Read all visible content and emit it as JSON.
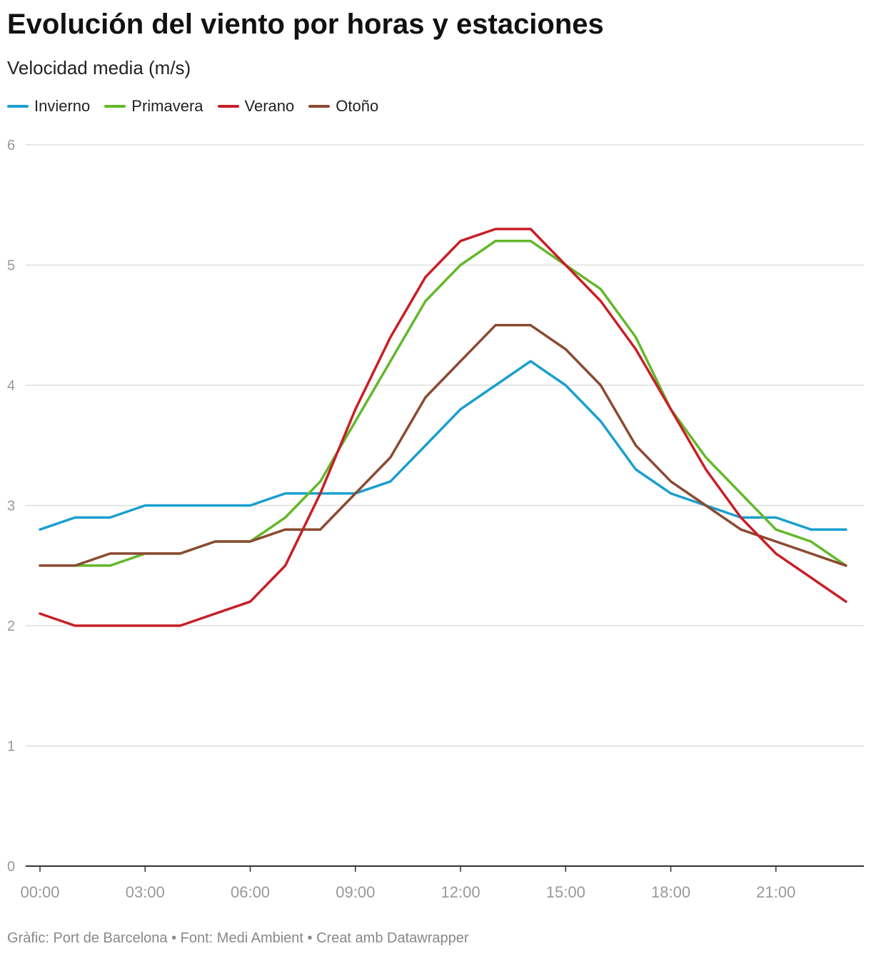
{
  "header": {
    "title": "Evolución del viento por horas y estaciones",
    "subtitle": "Velocidad media (m/s)"
  },
  "footer": {
    "text": "Gràfic: Port de Barcelona • Font: Medi Ambient • Creat amb Datawrapper"
  },
  "chart_data": {
    "type": "line",
    "title": "Evolución del viento por horas y estaciones",
    "subtitle": "Velocidad media (m/s)",
    "xlabel": "",
    "ylabel": "",
    "x": [
      0,
      1,
      2,
      3,
      4,
      5,
      6,
      7,
      8,
      9,
      10,
      11,
      12,
      13,
      14,
      15,
      16,
      17,
      18,
      19,
      20,
      21,
      22,
      23
    ],
    "x_range": [
      0,
      23
    ],
    "x_ticks": [
      0,
      3,
      6,
      9,
      12,
      15,
      18,
      21
    ],
    "x_tick_labels": [
      "00:00",
      "03:00",
      "06:00",
      "09:00",
      "12:00",
      "15:00",
      "18:00",
      "21:00"
    ],
    "ylim": [
      0,
      6
    ],
    "y_ticks": [
      0,
      1,
      2,
      3,
      4,
      5,
      6
    ],
    "grid": true,
    "legend": "top-left",
    "series": [
      {
        "name": "Invierno",
        "color": "#1a9fd0",
        "values": [
          2.8,
          2.9,
          2.9,
          3.0,
          3.0,
          3.0,
          3.0,
          3.1,
          3.1,
          3.1,
          3.2,
          3.5,
          3.8,
          4.0,
          4.2,
          4.0,
          3.7,
          3.3,
          3.1,
          3.0,
          2.9,
          2.9,
          2.8,
          2.8
        ]
      },
      {
        "name": "Primavera",
        "color": "#63b82a",
        "values": [
          2.5,
          2.5,
          2.5,
          2.6,
          2.6,
          2.7,
          2.7,
          2.9,
          3.2,
          3.7,
          4.2,
          4.7,
          5.0,
          5.2,
          5.2,
          5.0,
          4.8,
          4.4,
          3.8,
          3.4,
          3.1,
          2.8,
          2.7,
          2.5
        ]
      },
      {
        "name": "Verano",
        "color": "#c81e26",
        "values": [
          2.1,
          2.0,
          2.0,
          2.0,
          2.0,
          2.1,
          2.2,
          2.5,
          3.1,
          3.8,
          4.4,
          4.9,
          5.2,
          5.3,
          5.3,
          5.0,
          4.7,
          4.3,
          3.8,
          3.3,
          2.9,
          2.6,
          2.4,
          2.2
        ]
      },
      {
        "name": "Otoño",
        "color": "#8b4a32",
        "values": [
          2.5,
          2.5,
          2.6,
          2.6,
          2.6,
          2.7,
          2.7,
          2.8,
          2.8,
          3.1,
          3.4,
          3.9,
          4.2,
          4.5,
          4.5,
          4.3,
          4.0,
          3.5,
          3.2,
          3.0,
          2.8,
          2.7,
          2.6,
          2.5
        ]
      }
    ]
  }
}
